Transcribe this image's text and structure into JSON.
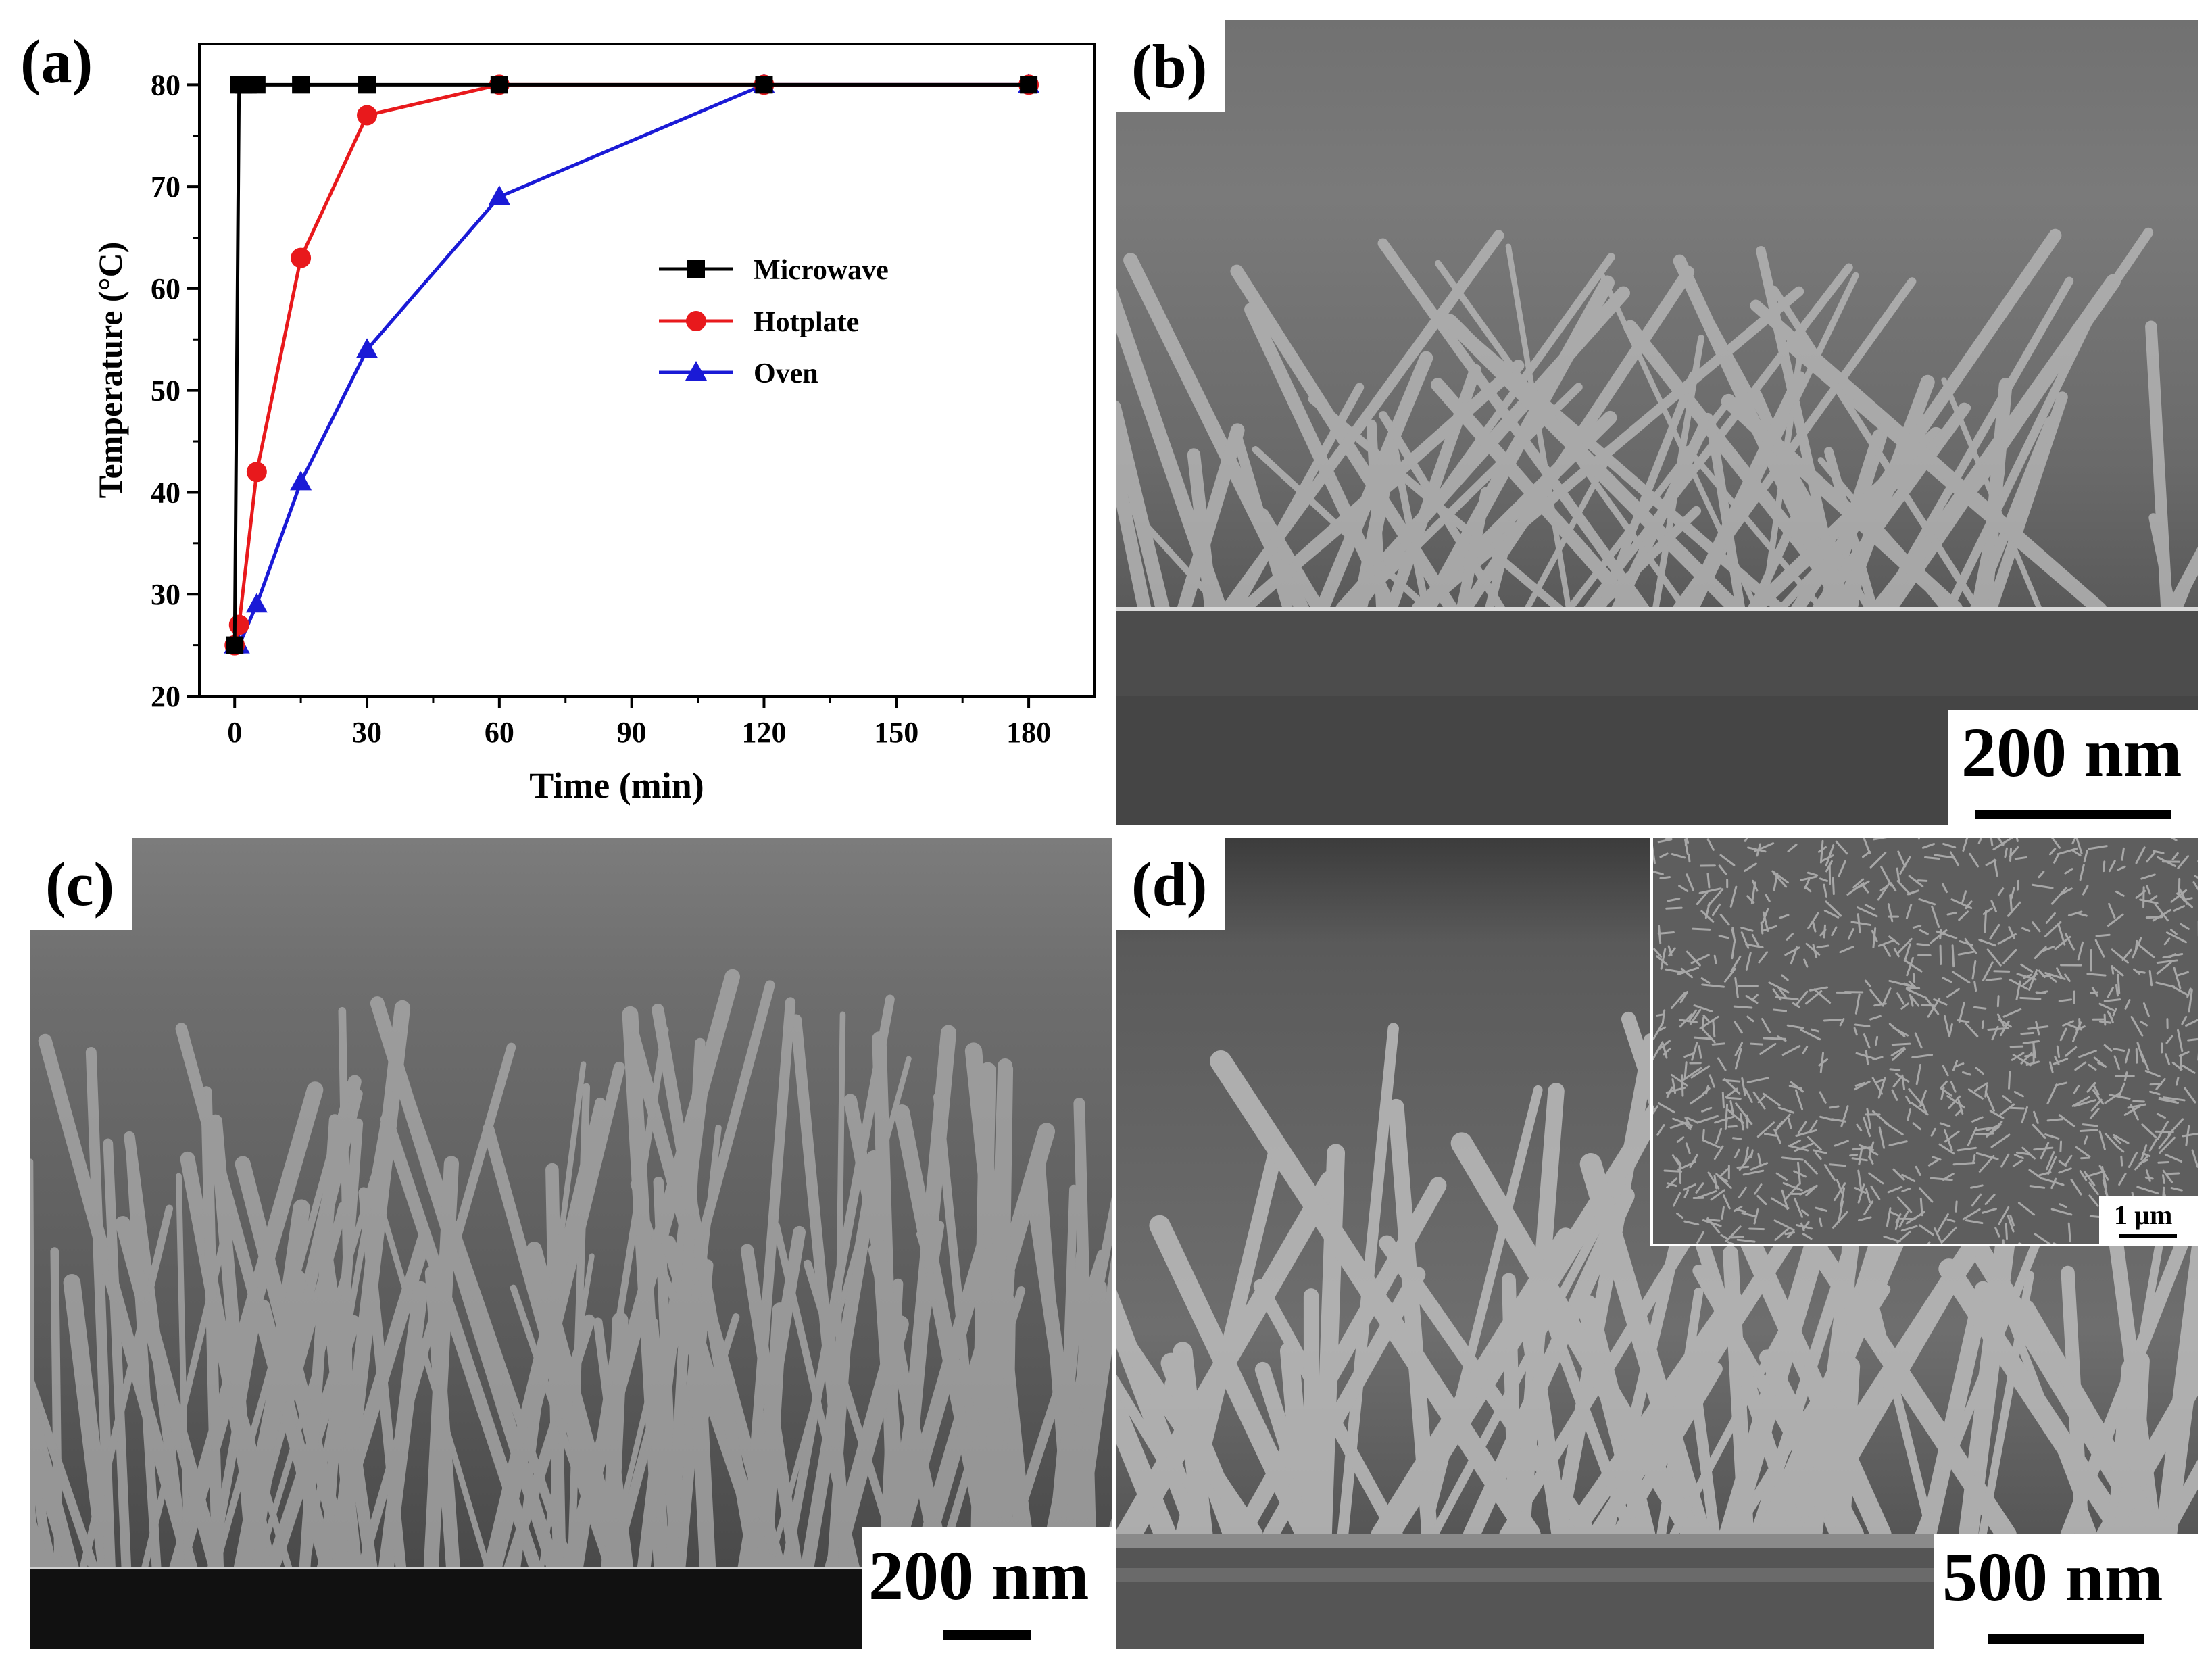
{
  "panels": {
    "a": {
      "label": "(a)"
    },
    "b": {
      "label": "(b)",
      "scale_label": "200 nm"
    },
    "c": {
      "label": "(c)",
      "scale_label": "200 nm"
    },
    "d": {
      "label": "(d)",
      "scale_label": "500 nm",
      "inset_scale_label": "1 µm"
    }
  },
  "colors": {
    "microwave": "#000000",
    "hotplate": "#e8191c",
    "oven": "#1a1ad6",
    "sem_bg": "#6b6b6b"
  },
  "chart_data": {
    "type": "line",
    "title": "",
    "xlabel": "Time (min)",
    "ylabel": "Temperature (°C)",
    "xlim": [
      -8,
      195
    ],
    "ylim": [
      20,
      84
    ],
    "xticks": [
      0,
      30,
      60,
      90,
      120,
      150,
      180
    ],
    "yticks": [
      20,
      30,
      40,
      50,
      60,
      70,
      80
    ],
    "grid": false,
    "legend_position": "center-right",
    "series": [
      {
        "name": "Microwave",
        "marker": "square",
        "color": "#000000",
        "x": [
          0,
          1,
          2,
          3,
          5,
          15,
          30,
          60,
          120,
          180
        ],
        "y": [
          25,
          80,
          80,
          80,
          80,
          80,
          80,
          80,
          80,
          80
        ]
      },
      {
        "name": "Hotplate",
        "marker": "circle",
        "color": "#e8191c",
        "x": [
          0,
          1,
          5,
          15,
          30,
          60,
          120,
          180
        ],
        "y": [
          25,
          27,
          42,
          63,
          77,
          80,
          80,
          80
        ]
      },
      {
        "name": "Oven",
        "marker": "triangle",
        "color": "#1a1ad6",
        "x": [
          0,
          1,
          5,
          15,
          30,
          60,
          120,
          180
        ],
        "y": [
          25,
          25,
          29,
          41,
          54,
          69,
          80,
          80
        ]
      }
    ]
  }
}
